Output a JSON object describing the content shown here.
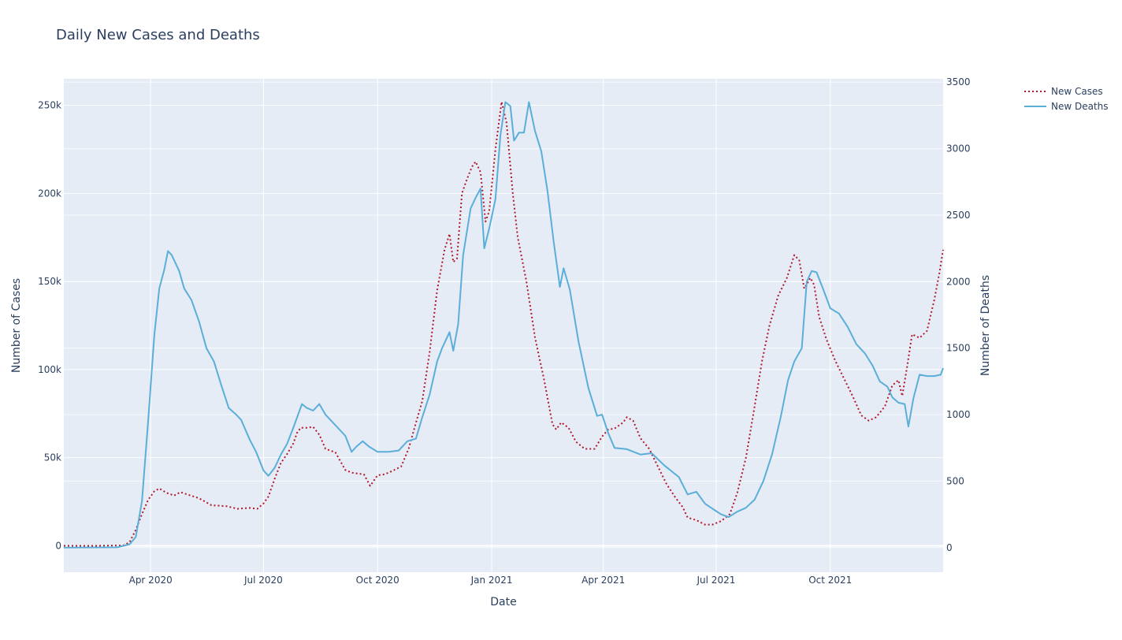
{
  "chart_data": {
    "type": "line",
    "title": "Daily New Cases and Deaths",
    "xlabel": "Date",
    "ylabel_left": "Number of Cases",
    "ylabel_right": "Number of Deaths",
    "x_range": [
      "2020-01-22",
      "2021-12-31"
    ],
    "y_left_range": [
      -15000,
      265000
    ],
    "y_right_range": [
      -185,
      3525
    ],
    "x_ticks": [
      {
        "date": "2020-04-01",
        "label": "Apr 2020"
      },
      {
        "date": "2020-07-01",
        "label": "Jul 2020"
      },
      {
        "date": "2020-10-01",
        "label": "Oct 2020"
      },
      {
        "date": "2021-01-01",
        "label": "Jan 2021"
      },
      {
        "date": "2021-04-01",
        "label": "Apr 2021"
      },
      {
        "date": "2021-07-01",
        "label": "Jul 2021"
      },
      {
        "date": "2021-10-01",
        "label": "Oct 2021"
      }
    ],
    "y_left_ticks": [
      {
        "value": 0,
        "label": "0"
      },
      {
        "value": 50000,
        "label": "50k"
      },
      {
        "value": 100000,
        "label": "100k"
      },
      {
        "value": 150000,
        "label": "150k"
      },
      {
        "value": 200000,
        "label": "200k"
      },
      {
        "value": 250000,
        "label": "250k"
      }
    ],
    "y_right_ticks": [
      {
        "value": 0,
        "label": "0"
      },
      {
        "value": 500,
        "label": "500"
      },
      {
        "value": 1000,
        "label": "1000"
      },
      {
        "value": 1500,
        "label": "1500"
      },
      {
        "value": 2000,
        "label": "2000"
      },
      {
        "value": 2500,
        "label": "2500"
      },
      {
        "value": 3000,
        "label": "3000"
      },
      {
        "value": 3500,
        "label": "3500"
      }
    ],
    "grid": true,
    "legend_position": "top-right",
    "series": [
      {
        "name": "New Cases",
        "axis": "left",
        "color": "#b2182b",
        "dash": "dot",
        "points": [
          [
            "2020-01-22",
            0
          ],
          [
            "2020-02-15",
            0
          ],
          [
            "2020-03-10",
            200
          ],
          [
            "2020-03-15",
            2000
          ],
          [
            "2020-03-20",
            9000
          ],
          [
            "2020-03-25",
            18000
          ],
          [
            "2020-03-30",
            26000
          ],
          [
            "2020-04-04",
            31000
          ],
          [
            "2020-04-08",
            32500
          ],
          [
            "2020-04-14",
            30000
          ],
          [
            "2020-04-20",
            28500
          ],
          [
            "2020-04-25",
            30500
          ],
          [
            "2020-05-01",
            29000
          ],
          [
            "2020-05-10",
            27000
          ],
          [
            "2020-05-20",
            23000
          ],
          [
            "2020-06-01",
            22500
          ],
          [
            "2020-06-10",
            21000
          ],
          [
            "2020-06-20",
            21500
          ],
          [
            "2020-06-26",
            21000
          ],
          [
            "2020-07-01",
            24000
          ],
          [
            "2020-07-05",
            28000
          ],
          [
            "2020-07-10",
            38000
          ],
          [
            "2020-07-15",
            47000
          ],
          [
            "2020-07-20",
            52000
          ],
          [
            "2020-07-25",
            58000
          ],
          [
            "2020-07-28",
            64000
          ],
          [
            "2020-07-31",
            67000
          ],
          [
            "2020-08-05",
            67000
          ],
          [
            "2020-08-10",
            67500
          ],
          [
            "2020-08-15",
            63000
          ],
          [
            "2020-08-20",
            55000
          ],
          [
            "2020-08-28",
            53000
          ],
          [
            "2020-09-05",
            43000
          ],
          [
            "2020-09-10",
            41500
          ],
          [
            "2020-09-15",
            41000
          ],
          [
            "2020-09-20",
            40500
          ],
          [
            "2020-09-25",
            34000
          ],
          [
            "2020-10-01",
            40000
          ],
          [
            "2020-10-06",
            40500
          ],
          [
            "2020-10-10",
            41500
          ],
          [
            "2020-10-20",
            45000
          ],
          [
            "2020-10-26",
            55000
          ],
          [
            "2020-11-01",
            70000
          ],
          [
            "2020-11-06",
            82000
          ],
          [
            "2020-11-12",
            110000
          ],
          [
            "2020-11-18",
            145000
          ],
          [
            "2020-11-24",
            168000
          ],
          [
            "2020-11-28",
            177000
          ],
          [
            "2020-12-01",
            161000
          ],
          [
            "2020-12-04",
            163000
          ],
          [
            "2020-12-08",
            200000
          ],
          [
            "2020-12-12",
            208000
          ],
          [
            "2020-12-16",
            215000
          ],
          [
            "2020-12-19",
            218000
          ],
          [
            "2020-12-23",
            212000
          ],
          [
            "2020-12-27",
            184000
          ],
          [
            "2020-12-30",
            190000
          ],
          [
            "2021-01-04",
            225000
          ],
          [
            "2021-01-09",
            252000
          ],
          [
            "2021-01-13",
            240000
          ],
          [
            "2021-01-18",
            200000
          ],
          [
            "2021-01-22",
            175000
          ],
          [
            "2021-01-29",
            150000
          ],
          [
            "2021-02-05",
            118000
          ],
          [
            "2021-02-12",
            95000
          ],
          [
            "2021-02-19",
            69000
          ],
          [
            "2021-02-22",
            66000
          ],
          [
            "2021-02-26",
            70000
          ],
          [
            "2021-03-04",
            67000
          ],
          [
            "2021-03-10",
            59000
          ],
          [
            "2021-03-17",
            55000
          ],
          [
            "2021-03-25",
            55000
          ],
          [
            "2021-03-31",
            62000
          ],
          [
            "2021-04-05",
            66000
          ],
          [
            "2021-04-10",
            66500
          ],
          [
            "2021-04-17",
            70000
          ],
          [
            "2021-04-20",
            73000
          ],
          [
            "2021-04-25",
            71000
          ],
          [
            "2021-05-01",
            61000
          ],
          [
            "2021-05-08",
            55000
          ],
          [
            "2021-05-15",
            45000
          ],
          [
            "2021-05-22",
            35000
          ],
          [
            "2021-05-29",
            27500
          ],
          [
            "2021-06-04",
            22000
          ],
          [
            "2021-06-08",
            16000
          ],
          [
            "2021-06-15",
            14500
          ],
          [
            "2021-06-22",
            12000
          ],
          [
            "2021-06-28",
            12000
          ],
          [
            "2021-07-05",
            14000
          ],
          [
            "2021-07-12",
            18000
          ],
          [
            "2021-07-18",
            30000
          ],
          [
            "2021-07-25",
            50000
          ],
          [
            "2021-07-31",
            75000
          ],
          [
            "2021-08-07",
            105000
          ],
          [
            "2021-08-13",
            125000
          ],
          [
            "2021-08-20",
            142000
          ],
          [
            "2021-08-27",
            152000
          ],
          [
            "2021-09-02",
            165000
          ],
          [
            "2021-09-06",
            162000
          ],
          [
            "2021-09-10",
            146000
          ],
          [
            "2021-09-15",
            152000
          ],
          [
            "2021-09-18",
            148000
          ],
          [
            "2021-09-22",
            130000
          ],
          [
            "2021-09-28",
            117000
          ],
          [
            "2021-10-05",
            105000
          ],
          [
            "2021-10-12",
            95000
          ],
          [
            "2021-10-19",
            85000
          ],
          [
            "2021-10-26",
            74000
          ],
          [
            "2021-11-01",
            71000
          ],
          [
            "2021-11-07",
            73000
          ],
          [
            "2021-11-14",
            79000
          ],
          [
            "2021-11-20",
            91000
          ],
          [
            "2021-11-25",
            94000
          ],
          [
            "2021-11-28",
            85000
          ],
          [
            "2021-12-02",
            102000
          ],
          [
            "2021-12-06",
            120000
          ],
          [
            "2021-12-12",
            118000
          ],
          [
            "2021-12-18",
            122000
          ],
          [
            "2021-12-24",
            140000
          ],
          [
            "2021-12-28",
            155000
          ],
          [
            "2021-12-31",
            168000
          ]
        ]
      },
      {
        "name": "New Deaths",
        "axis": "right",
        "color": "#5aaed8",
        "dash": "solid",
        "points": [
          [
            "2020-01-22",
            0
          ],
          [
            "2020-03-05",
            2
          ],
          [
            "2020-03-15",
            25
          ],
          [
            "2020-03-20",
            80
          ],
          [
            "2020-03-25",
            350
          ],
          [
            "2020-03-30",
            950
          ],
          [
            "2020-04-04",
            1600
          ],
          [
            "2020-04-08",
            1950
          ],
          [
            "2020-04-12",
            2090
          ],
          [
            "2020-04-15",
            2230
          ],
          [
            "2020-04-18",
            2200
          ],
          [
            "2020-04-24",
            2080
          ],
          [
            "2020-04-28",
            1950
          ],
          [
            "2020-05-04",
            1860
          ],
          [
            "2020-05-10",
            1700
          ],
          [
            "2020-05-16",
            1500
          ],
          [
            "2020-05-22",
            1400
          ],
          [
            "2020-05-28",
            1220
          ],
          [
            "2020-06-03",
            1050
          ],
          [
            "2020-06-09",
            1000
          ],
          [
            "2020-06-13",
            960
          ],
          [
            "2020-06-20",
            810
          ],
          [
            "2020-06-25",
            720
          ],
          [
            "2020-07-01",
            580
          ],
          [
            "2020-07-05",
            540
          ],
          [
            "2020-07-10",
            600
          ],
          [
            "2020-07-15",
            700
          ],
          [
            "2020-07-20",
            780
          ],
          [
            "2020-07-25",
            900
          ],
          [
            "2020-08-01",
            1080
          ],
          [
            "2020-08-05",
            1050
          ],
          [
            "2020-08-10",
            1030
          ],
          [
            "2020-08-15",
            1080
          ],
          [
            "2020-08-20",
            1000
          ],
          [
            "2020-08-28",
            920
          ],
          [
            "2020-09-05",
            840
          ],
          [
            "2020-09-10",
            720
          ],
          [
            "2020-09-14",
            760
          ],
          [
            "2020-09-19",
            800
          ],
          [
            "2020-09-24",
            760
          ],
          [
            "2020-10-01",
            720
          ],
          [
            "2020-10-10",
            720
          ],
          [
            "2020-10-18",
            730
          ],
          [
            "2020-10-25",
            800
          ],
          [
            "2020-11-01",
            820
          ],
          [
            "2020-11-06",
            980
          ],
          [
            "2020-11-12",
            1150
          ],
          [
            "2020-11-18",
            1400
          ],
          [
            "2020-11-22",
            1500
          ],
          [
            "2020-11-28",
            1620
          ],
          [
            "2020-12-01",
            1480
          ],
          [
            "2020-12-05",
            1680
          ],
          [
            "2020-12-09",
            2200
          ],
          [
            "2020-12-15",
            2550
          ],
          [
            "2020-12-19",
            2630
          ],
          [
            "2020-12-23",
            2700
          ],
          [
            "2020-12-26",
            2250
          ],
          [
            "2020-12-30",
            2400
          ],
          [
            "2021-01-04",
            2620
          ],
          [
            "2021-01-08",
            3100
          ],
          [
            "2021-01-12",
            3350
          ],
          [
            "2021-01-16",
            3320
          ],
          [
            "2021-01-19",
            3060
          ],
          [
            "2021-01-23",
            3120
          ],
          [
            "2021-01-27",
            3120
          ],
          [
            "2021-01-31",
            3350
          ],
          [
            "2021-02-05",
            3130
          ],
          [
            "2021-02-10",
            2980
          ],
          [
            "2021-02-15",
            2680
          ],
          [
            "2021-02-20",
            2300
          ],
          [
            "2021-02-25",
            1960
          ],
          [
            "2021-02-28",
            2100
          ],
          [
            "2021-03-05",
            1940
          ],
          [
            "2021-03-12",
            1550
          ],
          [
            "2021-03-20",
            1200
          ],
          [
            "2021-03-27",
            990
          ],
          [
            "2021-03-31",
            1000
          ],
          [
            "2021-04-05",
            860
          ],
          [
            "2021-04-10",
            750
          ],
          [
            "2021-04-20",
            740
          ],
          [
            "2021-05-01",
            700
          ],
          [
            "2021-05-10",
            710
          ],
          [
            "2021-05-20",
            620
          ],
          [
            "2021-06-01",
            530
          ],
          [
            "2021-06-08",
            400
          ],
          [
            "2021-06-15",
            420
          ],
          [
            "2021-06-22",
            330
          ],
          [
            "2021-06-30",
            280
          ],
          [
            "2021-07-05",
            250
          ],
          [
            "2021-07-11",
            230
          ],
          [
            "2021-07-18",
            270
          ],
          [
            "2021-07-25",
            300
          ],
          [
            "2021-08-01",
            360
          ],
          [
            "2021-08-08",
            500
          ],
          [
            "2021-08-15",
            700
          ],
          [
            "2021-08-22",
            980
          ],
          [
            "2021-08-28",
            1260
          ],
          [
            "2021-09-02",
            1400
          ],
          [
            "2021-09-08",
            1500
          ],
          [
            "2021-09-12",
            2000
          ],
          [
            "2021-09-16",
            2080
          ],
          [
            "2021-09-20",
            2070
          ],
          [
            "2021-09-25",
            1950
          ],
          [
            "2021-10-01",
            1800
          ],
          [
            "2021-10-08",
            1760
          ],
          [
            "2021-10-15",
            1660
          ],
          [
            "2021-10-22",
            1530
          ],
          [
            "2021-10-29",
            1460
          ],
          [
            "2021-11-04",
            1370
          ],
          [
            "2021-11-10",
            1250
          ],
          [
            "2021-11-16",
            1210
          ],
          [
            "2021-11-20",
            1130
          ],
          [
            "2021-11-25",
            1090
          ],
          [
            "2021-11-30",
            1080
          ],
          [
            "2021-12-03",
            910
          ],
          [
            "2021-12-07",
            1120
          ],
          [
            "2021-12-12",
            1300
          ],
          [
            "2021-12-18",
            1290
          ],
          [
            "2021-12-24",
            1290
          ],
          [
            "2021-12-29",
            1300
          ],
          [
            "2021-12-31",
            1350
          ]
        ]
      }
    ]
  }
}
